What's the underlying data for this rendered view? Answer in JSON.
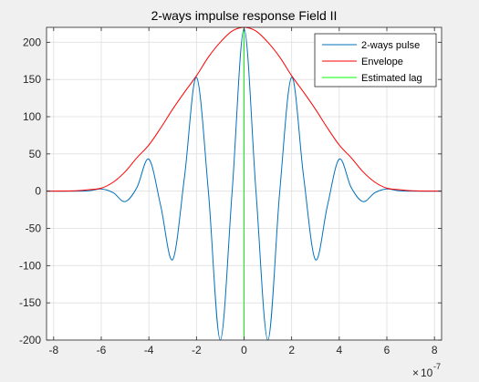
{
  "chart_data": {
    "type": "line",
    "title": "2-ways impulse response Field II",
    "xlabel": "",
    "ylabel": "",
    "x_exponent_label": "10",
    "x_exponent_power": "-7",
    "xlim": [
      -8.3,
      8.3
    ],
    "ylim": [
      -200,
      220
    ],
    "xticks": [
      -8,
      -6,
      -4,
      -2,
      0,
      2,
      4,
      6,
      8
    ],
    "xtick_labels": [
      "-8",
      "-6",
      "-4",
      "-2",
      "0",
      "2",
      "4",
      "6",
      "8"
    ],
    "yticks": [
      -200,
      -150,
      -100,
      -50,
      0,
      50,
      100,
      150,
      200
    ],
    "ytick_labels": [
      "-200",
      "-150",
      "-100",
      "-50",
      "0",
      "50",
      "100",
      "150",
      "200"
    ],
    "grid": true,
    "legend_position": "top-right",
    "series": [
      {
        "name": "2-ways pulse",
        "color": "#0072bd",
        "x": [
          -8.3,
          -7.0,
          -6.5,
          -6.0,
          -5.5,
          -5.0,
          -4.5,
          -4.0,
          -3.5,
          -3.0,
          -2.5,
          -2.0,
          -1.5,
          -1.0,
          -0.5,
          0.0,
          0.5,
          1.0,
          1.5,
          2.0,
          2.5,
          3.0,
          3.5,
          4.0,
          4.5,
          5.0,
          5.5,
          6.0,
          6.5,
          7.0,
          8.3
        ],
        "y": [
          0,
          0,
          0.5,
          3,
          -2,
          -14,
          5,
          43,
          -20,
          -92,
          20,
          153,
          0,
          -200,
          0,
          218,
          0,
          -200,
          0,
          153,
          20,
          -92,
          -20,
          43,
          5,
          -14,
          -2,
          3,
          0.5,
          0,
          0
        ]
      },
      {
        "name": "Envelope",
        "color": "#ff0000",
        "x": [
          -8.3,
          -7.5,
          -7.0,
          -6.5,
          -6.0,
          -5.5,
          -5.0,
          -4.5,
          -4.0,
          -3.5,
          -3.0,
          -2.5,
          -2.0,
          -1.5,
          -1.0,
          -0.5,
          0.0,
          0.5,
          1.0,
          1.5,
          2.0,
          2.5,
          3.0,
          3.5,
          4.0,
          4.5,
          5.0,
          5.5,
          6.0,
          6.5,
          7.0,
          7.5,
          8.3
        ],
        "y": [
          0,
          0.2,
          0.6,
          2,
          4,
          12,
          26,
          45,
          62,
          85,
          110,
          133,
          155,
          180,
          200,
          215,
          220,
          215,
          200,
          180,
          155,
          133,
          110,
          85,
          62,
          45,
          26,
          12,
          4,
          2,
          0.6,
          0.2,
          0
        ]
      },
      {
        "name": "Estimated lag",
        "color": "#00ff00",
        "x": [
          0,
          0
        ],
        "y": [
          -200,
          220
        ]
      }
    ]
  }
}
